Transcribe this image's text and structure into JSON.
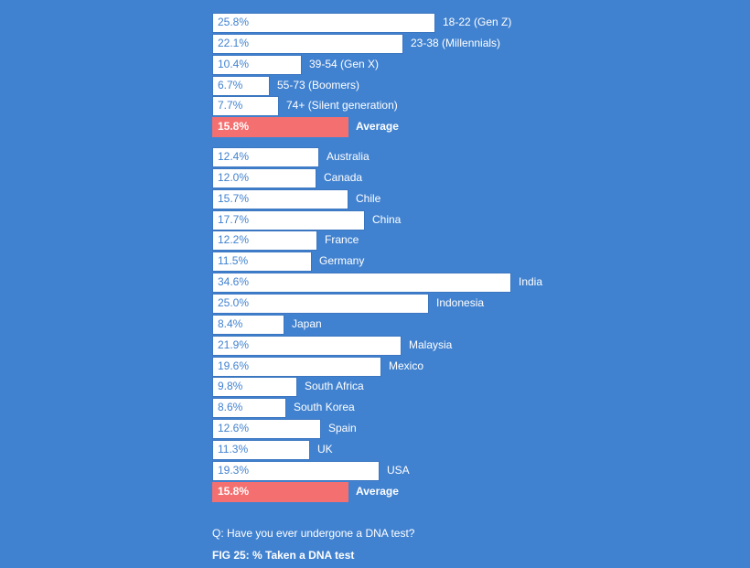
{
  "chart_data": {
    "type": "bar",
    "orientation": "horizontal",
    "colors": {
      "background": "#4182d0",
      "bar": "#ffffff",
      "average_bar": "#f46f6f"
    },
    "groups": [
      {
        "categories": [
          "18-22 (Gen Z)",
          "23-38 (Millennials)",
          "39-54 (Gen X)",
          "55-73 (Boomers)",
          "74+ (Silent generation)",
          "Average"
        ],
        "values": [
          25.8,
          22.1,
          10.4,
          6.7,
          7.7,
          15.8
        ],
        "value_labels": [
          "25.8%",
          "22.1%",
          "10.4%",
          "6.7%",
          "7.7%",
          "15.8%"
        ]
      },
      {
        "categories": [
          "Australia",
          "Canada",
          "Chile",
          "China",
          "France",
          "Germany",
          "India",
          "Indonesia",
          "Japan",
          "Malaysia",
          "Mexico",
          "South Africa",
          "South Korea",
          "Spain",
          "UK",
          "USA",
          "Average"
        ],
        "values": [
          12.4,
          12.0,
          15.7,
          17.7,
          12.2,
          11.5,
          34.6,
          25.0,
          8.4,
          21.9,
          19.6,
          9.8,
          8.6,
          12.6,
          11.3,
          19.3,
          15.8
        ],
        "value_labels": [
          "12.4%",
          "12.0%",
          "15.7%",
          "17.7%",
          "12.2%",
          "11.5%",
          "34.6%",
          "25.0%",
          "8.4%",
          "21.9%",
          "19.6%",
          "9.8%",
          "8.6%",
          "12.6%",
          "11.3%",
          "19.3%",
          "15.8%"
        ]
      }
    ],
    "question": "Q: Have you ever undergone a DNA test?",
    "caption": "FIG 25: % Taken a DNA test"
  }
}
